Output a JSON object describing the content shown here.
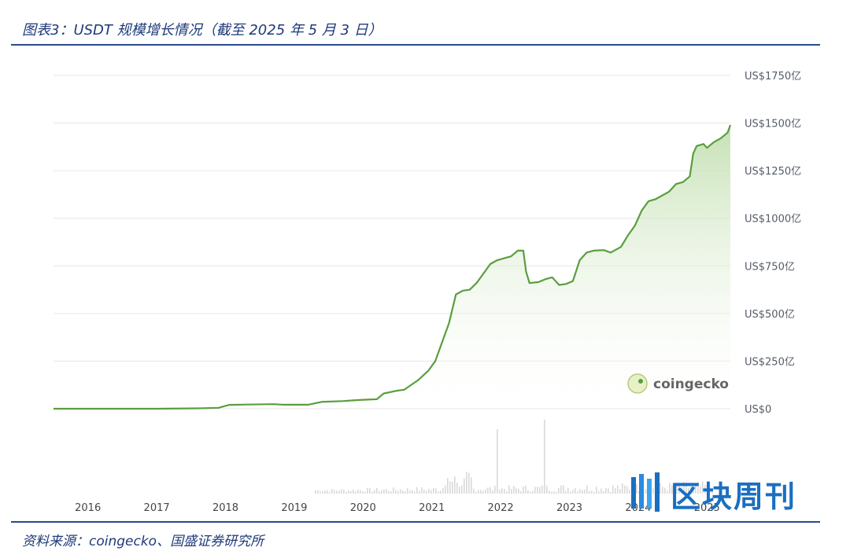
{
  "figure": {
    "title": "图表3：USDT 规模增长情况（截至 2025 年 5 月 3 日）",
    "source": "资料来源：coingecko、国盛证券研究所"
  },
  "watermark": {
    "text": "coingecko",
    "icon": "gecko-logo-icon"
  },
  "brand": {
    "text": "区块周刊",
    "icon": "brand-logo-icon"
  },
  "colors": {
    "line": "#5a9e3f",
    "fill": "#cfe6bf",
    "grid": "#e6e6e6",
    "rule": "#2a4a8c",
    "volume": "#d9d9d9"
  },
  "chart_data": {
    "type": "area",
    "xlabel": "",
    "ylabel": "",
    "x_ticks": [
      "2016",
      "2017",
      "2018",
      "2019",
      "2020",
      "2021",
      "2022",
      "2023",
      "2024",
      "2025"
    ],
    "y_ticks": [
      "US$0",
      "US$250亿",
      "US$500亿",
      "US$750亿",
      "US$1000亿",
      "US$1250亿",
      "US$1500亿",
      "US$1750亿"
    ],
    "ylim": [
      0,
      1750
    ],
    "xlim": [
      2015.5,
      2025.34
    ],
    "grid": true,
    "series": [
      {
        "values": [
          [
            2015.5,
            0
          ],
          [
            2016.0,
            0
          ],
          [
            2016.5,
            0
          ],
          [
            2017.0,
            0
          ],
          [
            2017.3,
            1
          ],
          [
            2017.6,
            2
          ],
          [
            2017.9,
            5
          ],
          [
            2018.05,
            20
          ],
          [
            2018.3,
            22
          ],
          [
            2018.5,
            23
          ],
          [
            2018.7,
            24
          ],
          [
            2018.8,
            22
          ],
          [
            2018.85,
            21
          ],
          [
            2019.0,
            21
          ],
          [
            2019.2,
            21
          ],
          [
            2019.4,
            36
          ],
          [
            2019.7,
            40
          ],
          [
            2019.9,
            45
          ],
          [
            2020.0,
            47
          ],
          [
            2020.2,
            50
          ],
          [
            2020.3,
            80
          ],
          [
            2020.5,
            95
          ],
          [
            2020.6,
            100
          ],
          [
            2020.8,
            150
          ],
          [
            2020.95,
            200
          ],
          [
            2021.05,
            250
          ],
          [
            2021.15,
            350
          ],
          [
            2021.25,
            450
          ],
          [
            2021.35,
            600
          ],
          [
            2021.45,
            620
          ],
          [
            2021.55,
            625
          ],
          [
            2021.65,
            660
          ],
          [
            2021.75,
            710
          ],
          [
            2021.85,
            760
          ],
          [
            2021.95,
            780
          ],
          [
            2022.05,
            790
          ],
          [
            2022.15,
            800
          ],
          [
            2022.25,
            830
          ],
          [
            2022.33,
            830
          ],
          [
            2022.37,
            720
          ],
          [
            2022.42,
            660
          ],
          [
            2022.55,
            665
          ],
          [
            2022.65,
            680
          ],
          [
            2022.75,
            690
          ],
          [
            2022.85,
            650
          ],
          [
            2022.95,
            655
          ],
          [
            2023.05,
            670
          ],
          [
            2023.15,
            780
          ],
          [
            2023.25,
            820
          ],
          [
            2023.35,
            830
          ],
          [
            2023.5,
            833
          ],
          [
            2023.6,
            820
          ],
          [
            2023.75,
            850
          ],
          [
            2023.85,
            910
          ],
          [
            2023.95,
            960
          ],
          [
            2024.05,
            1040
          ],
          [
            2024.15,
            1090
          ],
          [
            2024.25,
            1100
          ],
          [
            2024.35,
            1120
          ],
          [
            2024.45,
            1140
          ],
          [
            2024.55,
            1180
          ],
          [
            2024.65,
            1190
          ],
          [
            2024.75,
            1220
          ],
          [
            2024.8,
            1340
          ],
          [
            2024.85,
            1380
          ],
          [
            2024.95,
            1390
          ],
          [
            2025.0,
            1370
          ],
          [
            2025.1,
            1400
          ],
          [
            2025.2,
            1420
          ],
          [
            2025.3,
            1450
          ],
          [
            2025.34,
            1490
          ]
        ]
      }
    ]
  }
}
